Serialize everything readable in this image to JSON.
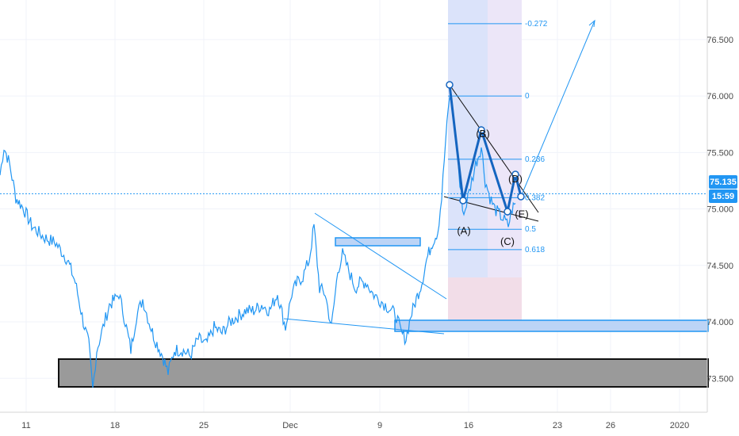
{
  "chart_data": {
    "type": "line",
    "x_ticks": [
      "11",
      "18",
      "25",
      "Dec",
      "9",
      "16",
      "23",
      "26",
      "2020"
    ],
    "y_ticks": [
      "73.500",
      "74.000",
      "74.500",
      "75.000",
      "75.500",
      "76.000",
      "76.500"
    ],
    "ylim": [
      73.2,
      76.85
    ],
    "current_price": "75.135",
    "countdown": "15:59",
    "price_points": [
      [
        0,
        75.3
      ],
      [
        5,
        75.55
      ],
      [
        12,
        75.4
      ],
      [
        20,
        75.1
      ],
      [
        30,
        75.0
      ],
      [
        40,
        74.85
      ],
      [
        55,
        74.75
      ],
      [
        70,
        74.7
      ],
      [
        85,
        74.55
      ],
      [
        95,
        74.35
      ],
      [
        105,
        74.0
      ],
      [
        112,
        73.8
      ],
      [
        117,
        73.4
      ],
      [
        122,
        73.75
      ],
      [
        130,
        73.95
      ],
      [
        138,
        74.15
      ],
      [
        145,
        74.2
      ],
      [
        150,
        74.25
      ],
      [
        158,
        74.0
      ],
      [
        165,
        73.75
      ],
      [
        172,
        74.05
      ],
      [
        180,
        74.2
      ],
      [
        188,
        74.0
      ],
      [
        195,
        73.85
      ],
      [
        205,
        73.7
      ],
      [
        212,
        73.55
      ],
      [
        220,
        73.75
      ],
      [
        230,
        73.75
      ],
      [
        240,
        73.7
      ],
      [
        250,
        73.85
      ],
      [
        260,
        73.8
      ],
      [
        270,
        73.95
      ],
      [
        280,
        73.9
      ],
      [
        290,
        74.0
      ],
      [
        300,
        74.05
      ],
      [
        310,
        74.1
      ],
      [
        320,
        74.1
      ],
      [
        330,
        74.15
      ],
      [
        340,
        74.1
      ],
      [
        350,
        74.25
      ],
      [
        360,
        73.95
      ],
      [
        368,
        74.25
      ],
      [
        375,
        74.35
      ],
      [
        382,
        74.4
      ],
      [
        390,
        74.55
      ],
      [
        396,
        74.85
      ],
      [
        403,
        74.3
      ],
      [
        410,
        74.25
      ],
      [
        418,
        73.95
      ],
      [
        426,
        74.45
      ],
      [
        432,
        74.6
      ],
      [
        440,
        74.45
      ],
      [
        448,
        74.3
      ],
      [
        455,
        74.35
      ],
      [
        462,
        74.35
      ],
      [
        470,
        74.25
      ],
      [
        478,
        74.2
      ],
      [
        486,
        74.15
      ],
      [
        494,
        74.1
      ],
      [
        500,
        74.05
      ],
      [
        506,
        73.9
      ],
      [
        512,
        73.85
      ],
      [
        518,
        74.05
      ],
      [
        525,
        74.2
      ],
      [
        532,
        74.35
      ],
      [
        538,
        74.55
      ],
      [
        545,
        74.7
      ],
      [
        552,
        74.8
      ],
      [
        557,
        75.1
      ],
      [
        562,
        75.6
      ],
      [
        567,
        76.0
      ],
      [
        572,
        75.8
      ],
      [
        577,
        75.5
      ],
      [
        580,
        75.2
      ],
      [
        585,
        74.95
      ],
      [
        590,
        75.1
      ],
      [
        595,
        75.25
      ],
      [
        600,
        75.4
      ],
      [
        607,
        75.55
      ],
      [
        612,
        75.25
      ],
      [
        618,
        75.1
      ],
      [
        624,
        75.0
      ],
      [
        630,
        74.95
      ],
      [
        636,
        74.9
      ],
      [
        641,
        74.85
      ],
      [
        646,
        75.0
      ],
      [
        650,
        75.05
      ]
    ],
    "fib_levels": [
      {
        "label": "-0.272",
        "value": 76.64
      },
      {
        "label": "0",
        "value": 76.0
      },
      {
        "label": "0.236",
        "value": 75.44
      },
      {
        "label": "0.382",
        "value": 75.1
      },
      {
        "label": "0.5",
        "value": 74.82
      },
      {
        "label": "0.618",
        "value": 74.64
      }
    ],
    "wave_labels": [
      {
        "label": "(A)",
        "x": 585,
        "value": 74.93
      },
      {
        "label": "(B)",
        "x": 608,
        "value": 75.55
      },
      {
        "label": "(C)",
        "x": 640,
        "value": 74.85
      },
      {
        "label": "(D)",
        "x": 650,
        "value": 75.15
      },
      {
        "label": "(E)",
        "x": 657,
        "value": 74.98
      }
    ],
    "colors": {
      "price": "#2196f3",
      "accent": "#2196f3",
      "zone": "#9a9a9a",
      "fib_band": "#dfe6fb",
      "fib_band_light": "#ece6f7",
      "fib_band_pink": "#f3dde8"
    }
  }
}
